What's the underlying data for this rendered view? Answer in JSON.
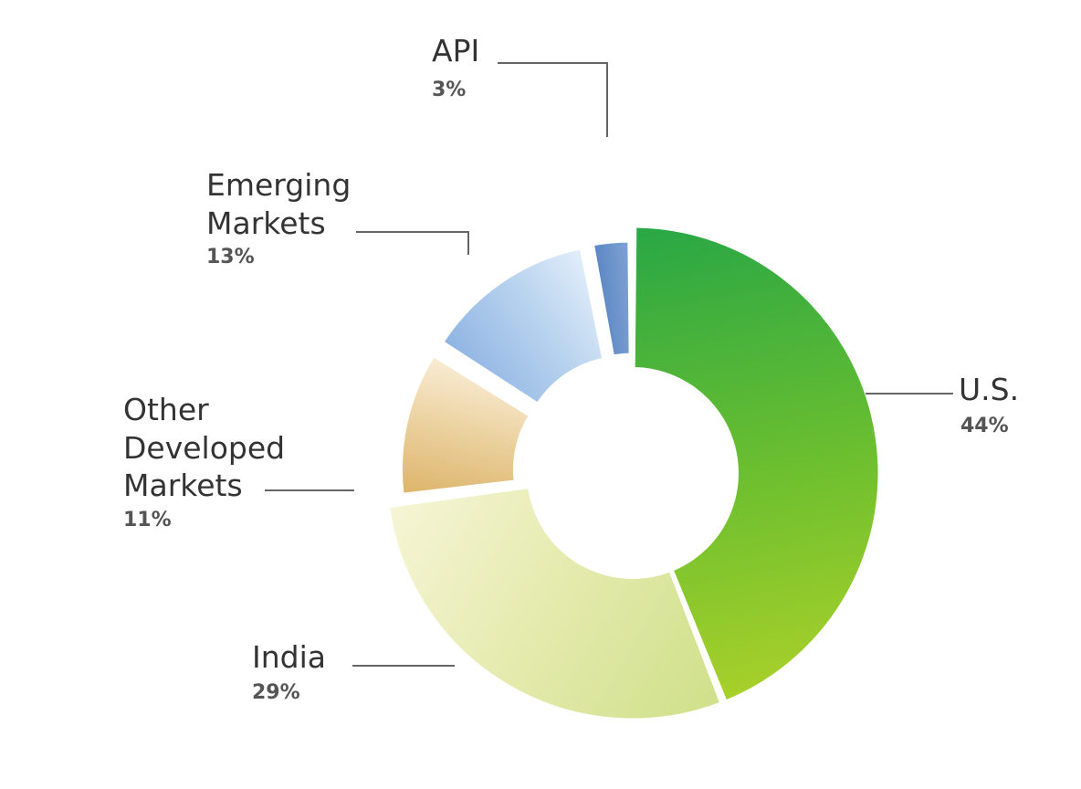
{
  "chart_data": {
    "type": "pie",
    "variant": "donut",
    "title": "",
    "start_at": "12 o'clock",
    "direction": "clockwise",
    "slices": [
      {
        "key": "us",
        "label_lines": [
          "U.S."
        ],
        "value": 44,
        "value_label": "44%",
        "color": "#6cbf2f",
        "color_dark": "#28a745",
        "color_light": "#a8d02a",
        "exploded": false
      },
      {
        "key": "india",
        "label_lines": [
          "India"
        ],
        "value": 29,
        "value_label": "29%",
        "color": "#e6ebb0",
        "color_dark": "#cfe08a",
        "color_light": "#f6f5d6",
        "exploded": false
      },
      {
        "key": "other",
        "label_lines": [
          "Other",
          "Developed",
          "Markets"
        ],
        "value": 11,
        "value_label": "11%",
        "color": "#ecd3a2",
        "color_dark": "#ddb46a",
        "color_light": "#f9ecd5",
        "exploded": true
      },
      {
        "key": "emerging",
        "label_lines": [
          "Emerging",
          "Markets"
        ],
        "value": 13,
        "value_label": "13%",
        "color": "#b8d3ee",
        "color_dark": "#8fb4e3",
        "color_light": "#e3eefa",
        "exploded": true
      },
      {
        "key": "api",
        "label_lines": [
          "API"
        ],
        "value": 3,
        "value_label": "3%",
        "color": "#6f96cc",
        "color_dark": "#5b86c4",
        "color_light": "#7fa2d6",
        "exploded": true
      }
    ]
  }
}
